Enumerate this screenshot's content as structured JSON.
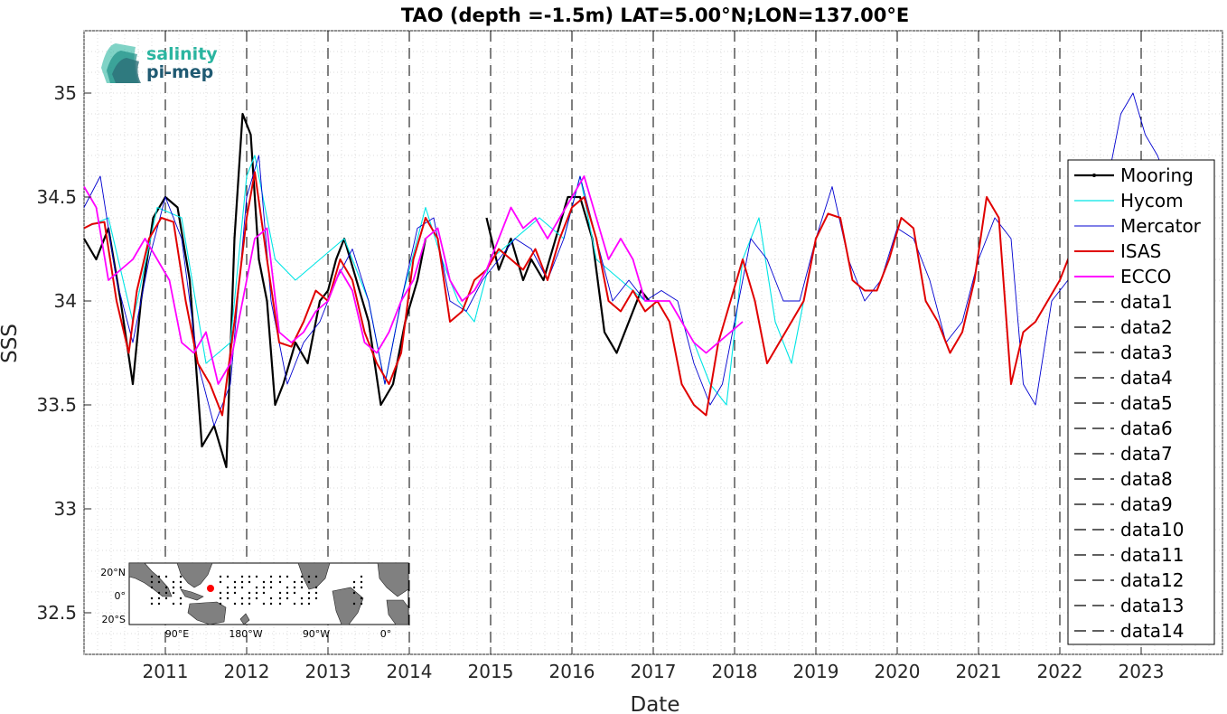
{
  "chart_data": {
    "type": "line",
    "title": "TAO (depth =-1.5m) LAT=5.00°N;LON=137.00°E",
    "xlabel": "Date",
    "ylabel": "SSS",
    "xlim": [
      2010.0,
      2024.0
    ],
    "ylim": [
      32.3,
      35.3
    ],
    "x_ticks": [
      "2011",
      "2012",
      "2013",
      "2014",
      "2015",
      "2016",
      "2017",
      "2018",
      "2019",
      "2020",
      "2021",
      "2022",
      "2023"
    ],
    "y_ticks": [
      "32.5",
      "33",
      "33.5",
      "34",
      "34.5",
      "35"
    ],
    "grid": "minor dotted",
    "legend_position": "right",
    "legend": [
      "Mooring",
      "Hycom",
      "Mercator",
      "ISAS",
      "ECCO",
      "data1",
      "data2",
      "data3",
      "data4",
      "data5",
      "data6",
      "data7",
      "data8",
      "data9",
      "data10",
      "data11",
      "data12",
      "data13",
      "data14"
    ],
    "vertical_dashed_lines": [
      2011,
      2012,
      2013,
      2014,
      2015,
      2016,
      2017,
      2018,
      2019,
      2020,
      2021,
      2022,
      2023
    ],
    "colors": {
      "Mooring": "#000000",
      "Hycom": "#00e5e5",
      "Mercator": "#0000d0",
      "ISAS": "#e00000",
      "ECCO": "#ff00ff"
    },
    "series": [
      {
        "name": "Mooring",
        "x": [
          2010.0,
          2010.15,
          2010.3,
          2010.45,
          2010.6,
          2010.7,
          2010.85,
          2011.0,
          2011.15,
          2011.3,
          2011.45,
          2011.6,
          2011.75,
          2011.85,
          2011.95,
          2012.05,
          2012.15,
          2012.25,
          2012.35,
          2012.45,
          2012.6,
          2012.75,
          2012.9,
          2013.0,
          2013.1,
          2013.2,
          2013.35,
          2013.5,
          2013.65,
          2013.8,
          2013.95,
          2014.1,
          2014.2
        ],
        "y": [
          34.3,
          34.2,
          34.35,
          34.0,
          33.6,
          34.0,
          34.4,
          34.5,
          34.45,
          34.1,
          33.3,
          33.4,
          33.2,
          34.3,
          34.9,
          34.8,
          34.2,
          34.0,
          33.5,
          33.6,
          33.8,
          33.7,
          34.0,
          34.05,
          34.2,
          34.3,
          34.1,
          33.9,
          33.5,
          33.6,
          33.9,
          34.1,
          34.3
        ]
      },
      {
        "name": "Mooring",
        "x": [
          2014.95,
          2015.1,
          2015.25,
          2015.4,
          2015.5,
          2015.65,
          2015.8,
          2015.95,
          2016.1,
          2016.25,
          2016.4,
          2016.55,
          2016.7,
          2016.85,
          2016.95
        ],
        "y": [
          34.4,
          34.15,
          34.3,
          34.1,
          34.2,
          34.1,
          34.3,
          34.5,
          34.5,
          34.3,
          33.85,
          33.75,
          33.9,
          34.05,
          34.0
        ]
      },
      {
        "name": "Hycom",
        "x": [
          2010.0,
          2010.3,
          2010.6,
          2010.9,
          2011.2,
          2011.5,
          2011.8,
          2012.0,
          2012.1,
          2012.35,
          2012.6,
          2012.9,
          2013.2,
          2013.5,
          2013.7,
          2013.9,
          2014.2,
          2014.4,
          2014.6,
          2014.8,
          2015.0,
          2015.3,
          2015.6,
          2015.9,
          2016.1,
          2016.3,
          2016.6,
          2016.9,
          2017.2,
          2017.5,
          2017.7,
          2017.9,
          2018.1,
          2018.3,
          2018.5,
          2018.7,
          2018.85
        ],
        "y": [
          34.35,
          34.4,
          33.9,
          34.45,
          34.4,
          33.7,
          33.8,
          34.6,
          34.7,
          34.2,
          34.1,
          34.2,
          34.3,
          34.0,
          33.6,
          34.0,
          34.45,
          34.2,
          34.0,
          33.9,
          34.2,
          34.3,
          34.4,
          34.3,
          34.6,
          34.2,
          34.1,
          34.0,
          34.0,
          33.8,
          33.6,
          33.5,
          34.2,
          34.4,
          33.9,
          33.7,
          34.0
        ]
      },
      {
        "name": "Mercator",
        "x": [
          2010.0,
          2010.2,
          2010.4,
          2010.6,
          2010.8,
          2011.0,
          2011.2,
          2011.4,
          2011.6,
          2011.8,
          2012.0,
          2012.15,
          2012.3,
          2012.5,
          2012.7,
          2012.9,
          2013.1,
          2013.3,
          2013.5,
          2013.7,
          2013.9,
          2014.1,
          2014.3,
          2014.5,
          2014.7,
          2014.9,
          2015.1,
          2015.3,
          2015.5,
          2015.7,
          2015.9,
          2016.1,
          2016.3,
          2016.5,
          2016.7,
          2016.9,
          2017.1,
          2017.3,
          2017.5,
          2017.7,
          2017.85,
          2018.0,
          2018.2,
          2018.4,
          2018.6,
          2018.8,
          2019.0,
          2019.2,
          2019.4,
          2019.6,
          2019.8,
          2020.0,
          2020.2,
          2020.4,
          2020.6,
          2020.8,
          2021.0,
          2021.2,
          2021.4,
          2021.55,
          2021.7,
          2021.9,
          2022.1,
          2022.3,
          2022.45,
          2022.6,
          2022.75,
          2022.9,
          2023.05,
          2023.2,
          2023.3
        ],
        "y": [
          34.45,
          34.6,
          34.1,
          33.8,
          34.2,
          34.5,
          34.3,
          33.7,
          33.4,
          33.6,
          34.5,
          34.7,
          34.0,
          33.6,
          33.8,
          33.9,
          34.1,
          34.25,
          34.0,
          33.6,
          34.0,
          34.35,
          34.4,
          34.0,
          33.95,
          34.1,
          34.2,
          34.3,
          34.25,
          34.1,
          34.3,
          34.6,
          34.3,
          34.0,
          34.1,
          34.0,
          34.05,
          34.0,
          33.7,
          33.5,
          33.6,
          33.9,
          34.3,
          34.2,
          34.0,
          34.0,
          34.3,
          34.55,
          34.2,
          34.0,
          34.1,
          34.35,
          34.3,
          34.1,
          33.8,
          33.9,
          34.2,
          34.4,
          34.3,
          33.6,
          33.5,
          34.0,
          34.1,
          34.3,
          34.2,
          34.6,
          34.9,
          35.0,
          34.8,
          34.7,
          34.6
        ]
      },
      {
        "name": "ISAS",
        "x": [
          2010.0,
          2010.1,
          2010.25,
          2010.4,
          2010.55,
          2010.65,
          2010.8,
          2010.95,
          2011.1,
          2011.25,
          2011.4,
          2011.55,
          2011.7,
          2011.85,
          2012.0,
          2012.1,
          2012.25,
          2012.4,
          2012.55,
          2012.7,
          2012.85,
          2013.0,
          2013.15,
          2013.3,
          2013.45,
          2013.6,
          2013.75,
          2013.9,
          2014.05,
          2014.2,
          2014.35,
          2014.5,
          2014.65,
          2014.8,
          2014.95,
          2015.1,
          2015.25,
          2015.4,
          2015.55,
          2015.7,
          2015.85,
          2016.0,
          2016.15,
          2016.3,
          2016.45,
          2016.6,
          2016.75,
          2016.9,
          2017.05,
          2017.2,
          2017.35,
          2017.5,
          2017.65,
          2017.8,
          2017.95,
          2018.1,
          2018.25,
          2018.4,
          2018.55,
          2018.7,
          2018.85,
          2019.0,
          2019.15,
          2019.3,
          2019.45,
          2019.6,
          2019.75,
          2019.9,
          2020.05,
          2020.2,
          2020.35,
          2020.5,
          2020.65,
          2020.8,
          2020.95,
          2021.1,
          2021.25,
          2021.4,
          2021.55,
          2021.7,
          2021.85,
          2022.0,
          2022.15,
          2022.3,
          2022.45,
          2022.55
        ],
        "y": [
          34.35,
          34.37,
          34.38,
          34.0,
          33.75,
          34.05,
          34.3,
          34.4,
          34.38,
          34.0,
          33.7,
          33.6,
          33.45,
          33.9,
          34.4,
          34.62,
          34.2,
          33.8,
          33.78,
          33.9,
          34.05,
          34.0,
          34.2,
          34.1,
          33.85,
          33.7,
          33.6,
          33.75,
          34.2,
          34.4,
          34.3,
          33.9,
          33.95,
          34.1,
          34.15,
          34.25,
          34.2,
          34.15,
          34.25,
          34.1,
          34.3,
          34.45,
          34.5,
          34.3,
          34.0,
          33.95,
          34.05,
          33.95,
          34.0,
          33.9,
          33.6,
          33.5,
          33.45,
          33.8,
          34.0,
          34.2,
          34.0,
          33.7,
          33.8,
          33.9,
          34.0,
          34.3,
          34.42,
          34.4,
          34.1,
          34.05,
          34.05,
          34.2,
          34.4,
          34.35,
          34.0,
          33.9,
          33.75,
          33.85,
          34.1,
          34.5,
          34.4,
          33.6,
          33.85,
          33.9,
          34.0,
          34.1,
          34.25,
          34.35,
          34.38,
          34.15
        ]
      },
      {
        "name": "ECCO",
        "x": [
          2010.0,
          2010.15,
          2010.3,
          2010.45,
          2010.6,
          2010.75,
          2010.9,
          2011.05,
          2011.2,
          2011.35,
          2011.5,
          2011.65,
          2011.8,
          2011.95,
          2012.1,
          2012.25,
          2012.4,
          2012.55,
          2012.7,
          2012.85,
          2013.0,
          2013.15,
          2013.3,
          2013.45,
          2013.6,
          2013.75,
          2013.9,
          2014.05,
          2014.2,
          2014.35,
          2014.5,
          2014.65,
          2014.8,
          2014.95,
          2015.1,
          2015.25,
          2015.4,
          2015.55,
          2015.7,
          2015.85,
          2016.0,
          2016.15,
          2016.3,
          2016.45,
          2016.6,
          2016.75,
          2016.9,
          2017.05,
          2017.2,
          2017.35,
          2017.5,
          2017.65,
          2017.8,
          2017.95,
          2018.1
        ],
        "y": [
          34.55,
          34.45,
          34.1,
          34.15,
          34.2,
          34.3,
          34.2,
          34.1,
          33.8,
          33.75,
          33.85,
          33.6,
          33.7,
          34.0,
          34.3,
          34.35,
          33.85,
          33.8,
          33.85,
          33.95,
          34.0,
          34.15,
          34.05,
          33.8,
          33.75,
          33.85,
          34.0,
          34.1,
          34.3,
          34.35,
          34.1,
          34.0,
          34.05,
          34.15,
          34.3,
          34.45,
          34.35,
          34.4,
          34.3,
          34.4,
          34.5,
          34.6,
          34.4,
          34.2,
          34.3,
          34.2,
          34.0,
          34.0,
          34.0,
          33.9,
          33.8,
          33.75,
          33.8,
          33.85,
          33.9
        ]
      }
    ]
  },
  "logo": {
    "line1": "salinity",
    "line2": "pi-mep"
  },
  "inset_map": {
    "lat_labels": [
      "20°N",
      "0°",
      "20°S"
    ],
    "lon_labels": [
      "90°E",
      "180°W",
      "90°W",
      "0°"
    ]
  }
}
